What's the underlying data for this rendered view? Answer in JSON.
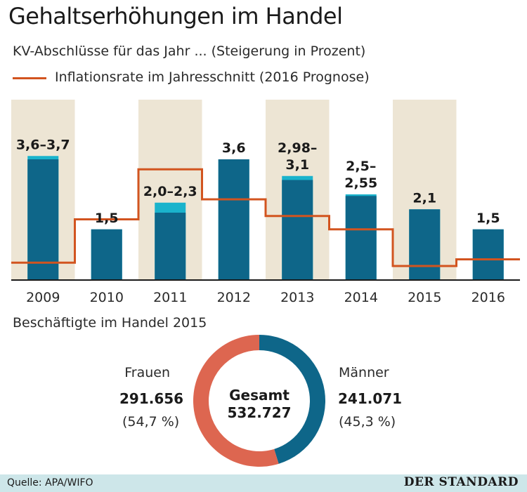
{
  "title": "Gehaltserhöhungen im Handel",
  "subtitle": "KV-Abschlüsse für das Jahr ... (Steigerung in Prozent)",
  "legend_inflation": "Inflationsrate im Jahresschnitt (2016 Prognose)",
  "colors": {
    "bar": "#0e6689",
    "bar_range": "#1ab3cc",
    "inflation": "#d2541f",
    "band": "#ede5d4",
    "donut_frauen": "#dd6650",
    "donut_maenner": "#0e6689",
    "footer": "#cde6e9"
  },
  "chart_data": [
    {
      "type": "bar",
      "categories": [
        "2009",
        "2010",
        "2011",
        "2012",
        "2013",
        "2014",
        "2015",
        "2016"
      ],
      "series": [
        {
          "min": [
            3.6,
            1.5,
            2.0,
            3.6,
            2.98,
            2.5,
            2.1,
            1.5
          ],
          "max": [
            3.7,
            1.5,
            2.3,
            3.6,
            3.1,
            2.55,
            2.1,
            1.5
          ]
        }
      ],
      "data_labels": [
        "3,6–3,7",
        "1,5",
        "2,0–2,3",
        "3,6",
        "2,98–\n3,1",
        "2,5–\n2,55",
        "2,1",
        "1,5"
      ],
      "inflation": [
        0.5,
        1.8,
        3.3,
        2.4,
        1.9,
        1.5,
        0.4,
        0.6
      ],
      "alternating_bands": [
        "2009",
        "2011",
        "2013",
        "2015"
      ]
    },
    {
      "type": "pie",
      "title": "Beschäftigte im Handel 2015",
      "center_label": "Gesamt",
      "center_value": "532.727",
      "slices": [
        {
          "name": "Frauen",
          "value": 291656,
          "value_label": "291.656",
          "percent_label": "(54,7 %)"
        },
        {
          "name": "Männer",
          "value": 241071,
          "value_label": "241.071",
          "percent_label": "(45,3 %)"
        }
      ]
    }
  ],
  "footer": {
    "source": "Quelle: APA/WIFO",
    "brand": "DER STANDARD"
  }
}
